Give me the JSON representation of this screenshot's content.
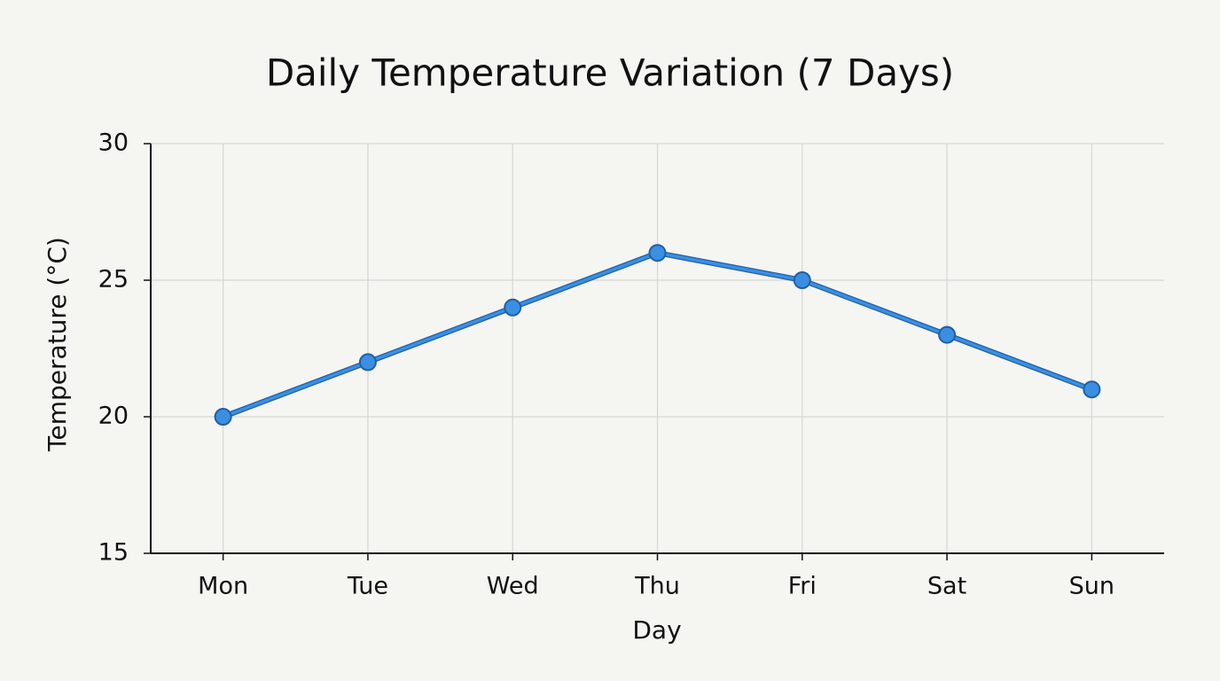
{
  "chart_data": {
    "type": "line",
    "title": "Daily Temperature Variation (7 Days)",
    "x_label": "Day",
    "y_label": "Temperature (°C)",
    "categories": [
      "Mon",
      "Tue",
      "Wed",
      "Thu",
      "Fri",
      "Sat",
      "Sun"
    ],
    "series": [
      {
        "name": "Temperature",
        "color": "#3b8fe0",
        "values": [
          20,
          22,
          24,
          26,
          25,
          23,
          21
        ]
      }
    ],
    "ylim": [
      15,
      30
    ],
    "yticks": [
      15,
      20,
      25,
      30
    ],
    "grid": true
  }
}
